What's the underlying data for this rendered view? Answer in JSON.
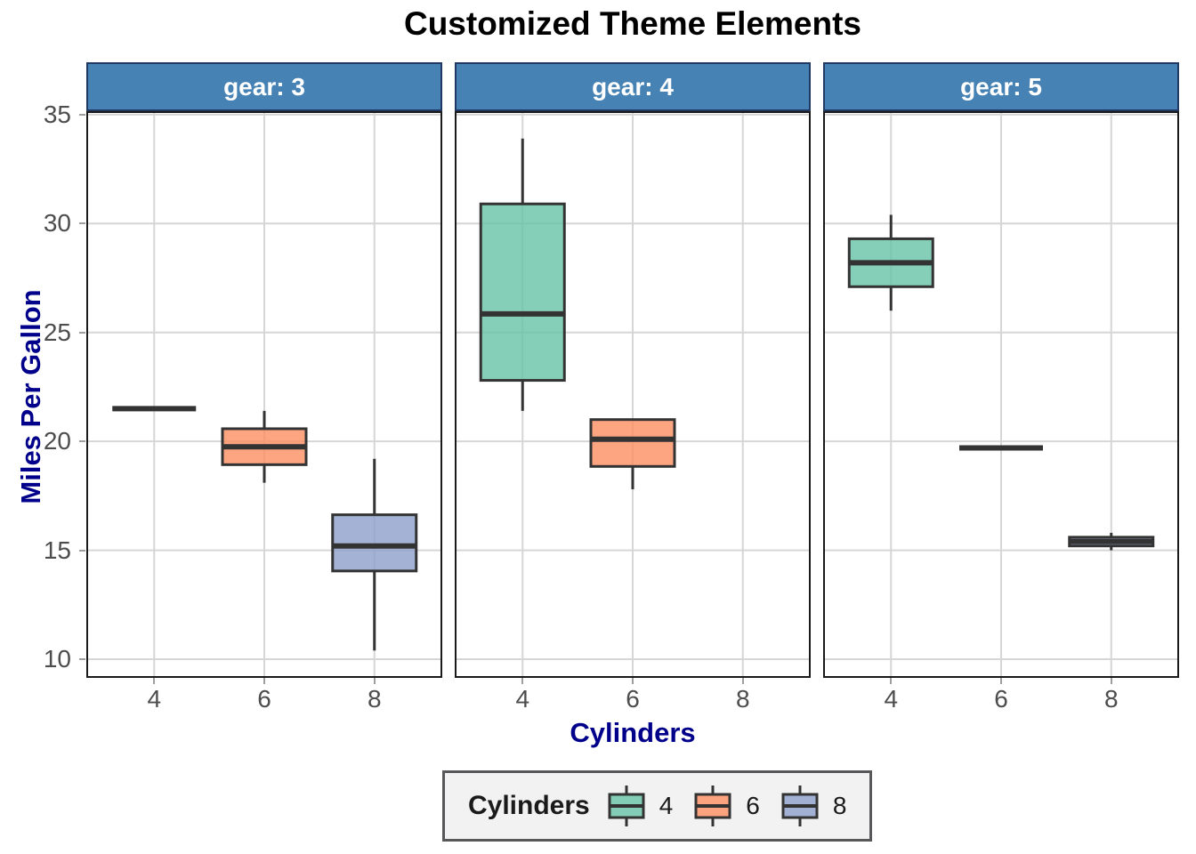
{
  "chart_data": {
    "type": "boxplot",
    "title": "Customized Theme Elements",
    "xlabel": "Cylinders",
    "ylabel": "Miles Per Gallon",
    "x_categories": [
      "4",
      "6",
      "8"
    ],
    "y_ticks": [
      10,
      15,
      20,
      25,
      30,
      35
    ],
    "y_domain": [
      9.225,
      35.075
    ],
    "grid": "major-only",
    "facets": [
      {
        "label": "gear: 3",
        "boxes": [
          {
            "category": "4",
            "min": 21.5,
            "q1": 21.5,
            "median": 21.5,
            "q3": 21.5,
            "max": 21.5
          },
          {
            "category": "6",
            "min": 18.1,
            "q1": 18.93,
            "median": 19.75,
            "q3": 20.58,
            "max": 21.4
          },
          {
            "category": "8",
            "min": 10.4,
            "q1": 14.05,
            "median": 15.2,
            "q3": 16.63,
            "max": 19.2
          }
        ]
      },
      {
        "label": "gear: 4",
        "boxes": [
          {
            "category": "4",
            "min": 21.4,
            "q1": 22.8,
            "median": 25.85,
            "q3": 30.9,
            "max": 33.9
          },
          {
            "category": "6",
            "min": 17.8,
            "q1": 18.85,
            "median": 20.1,
            "q3": 21.0,
            "max": 21.0
          }
        ]
      },
      {
        "label": "gear: 5",
        "boxes": [
          {
            "category": "4",
            "min": 26.0,
            "q1": 27.1,
            "median": 28.2,
            "q3": 29.3,
            "max": 30.4
          },
          {
            "category": "6",
            "min": 19.7,
            "q1": 19.7,
            "median": 19.7,
            "q3": 19.7,
            "max": 19.7
          },
          {
            "category": "8",
            "min": 15.0,
            "q1": 15.2,
            "median": 15.4,
            "q3": 15.6,
            "max": 15.8
          }
        ]
      }
    ],
    "legend": {
      "title": "Cylinders",
      "position": "bottom",
      "items": [
        {
          "label": "4",
          "fill": "rgba(102,194,165,0.8)"
        },
        {
          "label": "6",
          "fill": "rgba(252,141,98,0.8)"
        },
        {
          "label": "8",
          "fill": "rgba(141,160,203,0.8)"
        }
      ]
    },
    "colors": {
      "strip_fill": "#4682B4",
      "strip_border": "#1F3864",
      "strip_text": "#FFFFFF",
      "panel_border": "#1A1A1A",
      "grid": "#D6D6D6",
      "box_stroke": "#333333",
      "axis_title": "#00008B",
      "tick_label": "#4D4D4D",
      "tick_mark": "#9E9E9E",
      "title_text": "#000000",
      "legend_bg": "#F2F2F2",
      "legend_border": "#58585A",
      "legend_text": "#1A1A1A"
    }
  }
}
